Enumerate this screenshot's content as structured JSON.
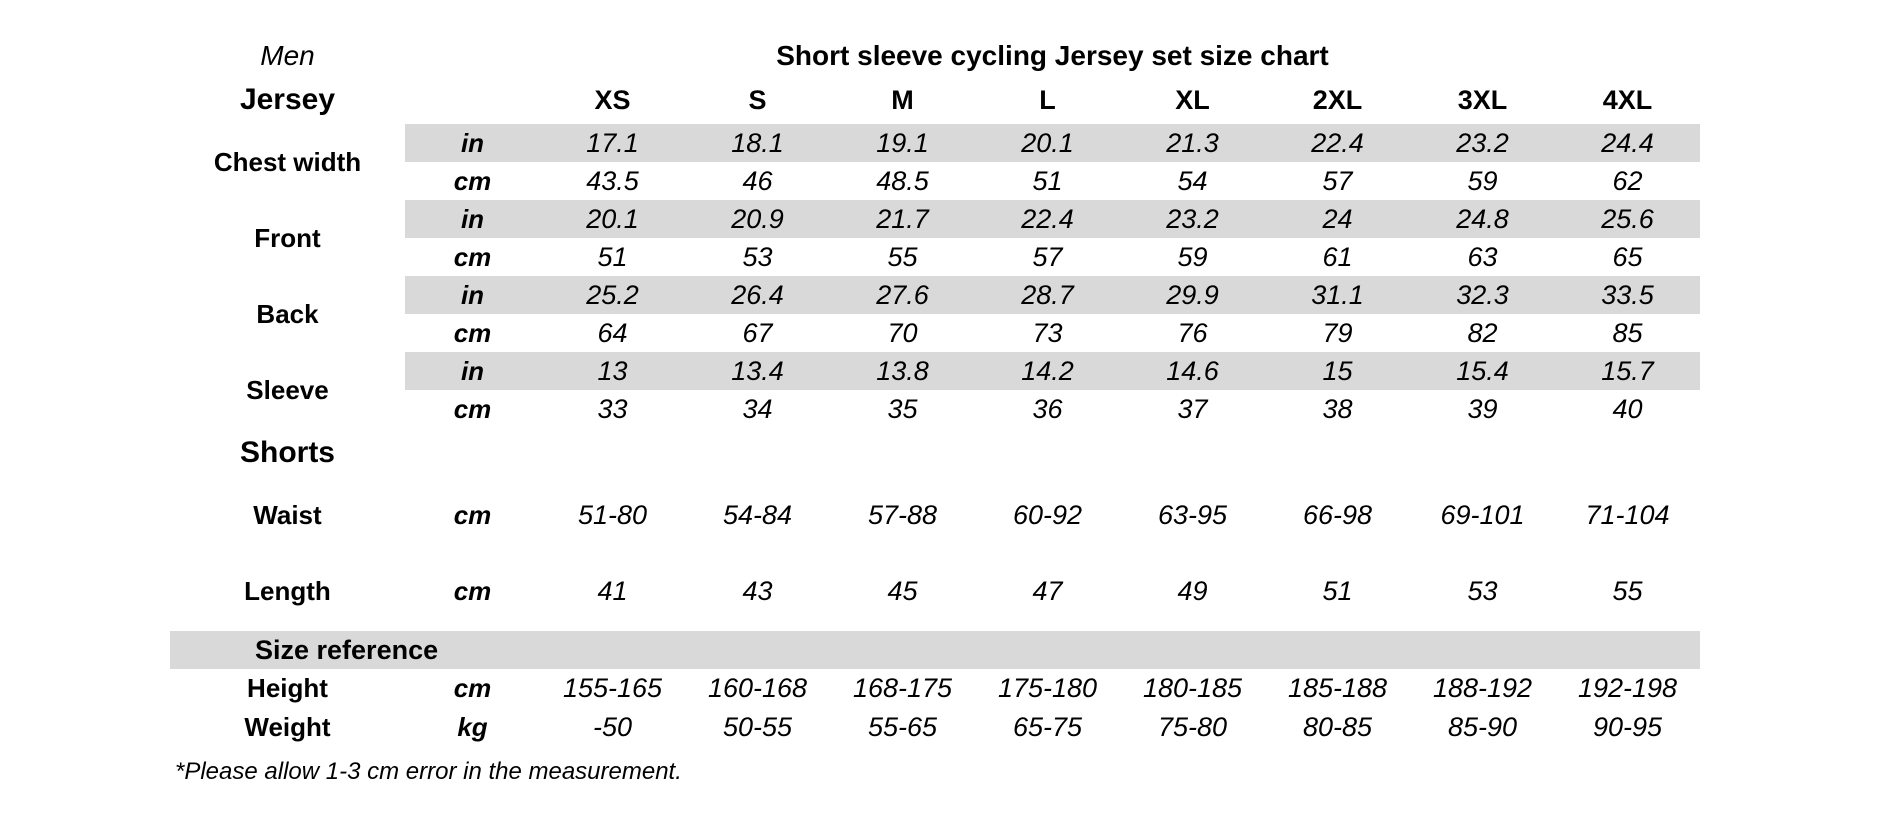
{
  "meta": {
    "gender": "Men",
    "title": "Short sleeve cycling Jersey set size chart",
    "footnote": "*Please allow 1-3 cm error in the measurement.",
    "shade_color": "#d9d9d9",
    "text_color": "#000000"
  },
  "sizes": [
    "XS",
    "S",
    "M",
    "L",
    "XL",
    "2XL",
    "3XL",
    "4XL"
  ],
  "jersey": {
    "label": "Jersey",
    "measures": [
      {
        "name": "Chest width",
        "units": [
          "in",
          "cm"
        ],
        "in": [
          "17.1",
          "18.1",
          "19.1",
          "20.1",
          "21.3",
          "22.4",
          "23.2",
          "24.4"
        ],
        "cm": [
          "43.5",
          "46",
          "48.5",
          "51",
          "54",
          "57",
          "59",
          "62"
        ]
      },
      {
        "name": "Front",
        "units": [
          "in",
          "cm"
        ],
        "in": [
          "20.1",
          "20.9",
          "21.7",
          "22.4",
          "23.2",
          "24",
          "24.8",
          "25.6"
        ],
        "cm": [
          "51",
          "53",
          "55",
          "57",
          "59",
          "61",
          "63",
          "65"
        ]
      },
      {
        "name": "Back",
        "units": [
          "in",
          "cm"
        ],
        "in": [
          "25.2",
          "26.4",
          "27.6",
          "28.7",
          "29.9",
          "31.1",
          "32.3",
          "33.5"
        ],
        "cm": [
          "64",
          "67",
          "70",
          "73",
          "76",
          "79",
          "82",
          "85"
        ]
      },
      {
        "name": "Sleeve",
        "units": [
          "in",
          "cm"
        ],
        "in": [
          "13",
          "13.4",
          "13.8",
          "14.2",
          "14.6",
          "15",
          "15.4",
          "15.7"
        ],
        "cm": [
          "33",
          "34",
          "35",
          "36",
          "37",
          "38",
          "39",
          "40"
        ]
      }
    ]
  },
  "shorts": {
    "label": "Shorts",
    "rows": [
      {
        "measure": "Waist",
        "unit": "cm",
        "values": [
          "51-80",
          "54-84",
          "57-88",
          "60-92",
          "63-95",
          "66-98",
          "69-101",
          "71-104"
        ]
      },
      {
        "measure": "Length",
        "unit": "cm",
        "values": [
          "41",
          "43",
          "45",
          "47",
          "49",
          "51",
          "53",
          "55"
        ]
      }
    ]
  },
  "size_reference": {
    "label": "Size reference",
    "rows": [
      {
        "measure": "Height",
        "unit": "cm",
        "values": [
          "155-165",
          "160-168",
          "168-175",
          "175-180",
          "180-185",
          "185-188",
          "188-192",
          "192-198"
        ]
      },
      {
        "measure": "Weight",
        "unit": "kg",
        "values": [
          "-50",
          "50-55",
          "55-65",
          "65-75",
          "75-80",
          "80-85",
          "85-90",
          "90-95"
        ]
      }
    ]
  }
}
